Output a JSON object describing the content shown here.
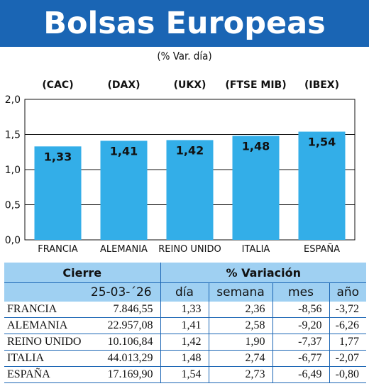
{
  "header": {
    "title": "Bolsas Europeas",
    "subtitle": "(% Var. día)"
  },
  "colors": {
    "banner": "#1a65b4",
    "bar": "#33aee8",
    "table_header": "#9fd0f2",
    "grid": "#111111"
  },
  "chart_data": {
    "type": "bar",
    "index_labels": [
      "(CAC)",
      "(DAX)",
      "(UKX)",
      "(FTSE MIB)",
      "(IBEX)"
    ],
    "categories": [
      "FRANCIA",
      "ALEMANIA",
      "REINO UNIDO",
      "ITALIA",
      "ESPAÑA"
    ],
    "values": [
      1.33,
      1.41,
      1.42,
      1.48,
      1.54
    ],
    "value_labels": [
      "1,33",
      "1,41",
      "1,42",
      "1,48",
      "1,54"
    ],
    "ylim": [
      0,
      2
    ],
    "yticks": [
      "0,0",
      "0,5",
      "1,0",
      "1,5",
      "2,0"
    ],
    "grid": true,
    "legend": "none"
  },
  "table": {
    "header_cierre": "Cierre",
    "header_variacion": "% Variación",
    "date": "25-03-´26",
    "col_dia": "día",
    "col_semana": "semana",
    "col_mes": "mes",
    "col_ano": "año",
    "rows": [
      {
        "country": "FRANCIA",
        "cierre": "7.846,55",
        "dia": "1,33",
        "semana": "2,36",
        "mes": "-8,56",
        "ano": "-3,72"
      },
      {
        "country": "ALEMANIA",
        "cierre": "22.957,08",
        "dia": "1,41",
        "semana": "2,58",
        "mes": "-9,20",
        "ano": "-6,26"
      },
      {
        "country": "REINO UNIDO",
        "cierre": "10.106,84",
        "dia": "1,42",
        "semana": "1,90",
        "mes": "-7,37",
        "ano": "1,77"
      },
      {
        "country": "ITALIA",
        "cierre": "44.013,29",
        "dia": "1,48",
        "semana": "2,74",
        "mes": "-6,77",
        "ano": "-2,07"
      },
      {
        "country": "ESPAÑA",
        "cierre": "17.169,90",
        "dia": "1,54",
        "semana": "2,73",
        "mes": "-6,49",
        "ano": "-0,80"
      }
    ]
  }
}
